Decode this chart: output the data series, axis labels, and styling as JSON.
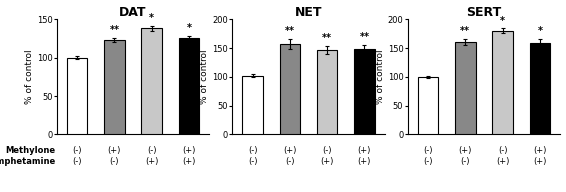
{
  "panels": [
    {
      "title": "DAT",
      "ylim": [
        0,
        150
      ],
      "yticks": [
        0,
        50,
        100,
        150
      ],
      "ylabel": "% of control",
      "bars": [
        {
          "value": 100,
          "error": 2,
          "color": "#ffffff",
          "edgecolor": "#000000",
          "sig": ""
        },
        {
          "value": 123,
          "error": 3,
          "color": "#888888",
          "edgecolor": "#000000",
          "sig": "**"
        },
        {
          "value": 138,
          "error": 3,
          "color": "#c8c8c8",
          "edgecolor": "#000000",
          "sig": "*"
        },
        {
          "value": 125,
          "error": 3,
          "color": "#000000",
          "edgecolor": "#000000",
          "sig": "*"
        }
      ],
      "xtick_top": [
        "(-)",
        "(+)",
        "(-)",
        "(+)"
      ],
      "xtick_bot": [
        "(-)",
        "(-)",
        "(+)",
        "(+)"
      ]
    },
    {
      "title": "NET",
      "ylim": [
        0,
        200
      ],
      "yticks": [
        0,
        50,
        100,
        150,
        200
      ],
      "ylabel": "% of control",
      "bars": [
        {
          "value": 102,
          "error": 3,
          "color": "#ffffff",
          "edgecolor": "#000000",
          "sig": ""
        },
        {
          "value": 157,
          "error": 8,
          "color": "#888888",
          "edgecolor": "#000000",
          "sig": "**"
        },
        {
          "value": 147,
          "error": 7,
          "color": "#c8c8c8",
          "edgecolor": "#000000",
          "sig": "**"
        },
        {
          "value": 148,
          "error": 8,
          "color": "#000000",
          "edgecolor": "#000000",
          "sig": "**"
        }
      ],
      "xtick_top": [
        "(-)",
        "(+)",
        "(-)",
        "(+)"
      ],
      "xtick_bot": [
        "(-)",
        "(-)",
        "(+)",
        "(+)"
      ]
    },
    {
      "title": "SERT",
      "ylim": [
        0,
        200
      ],
      "yticks": [
        0,
        50,
        100,
        150,
        200
      ],
      "ylabel": "% of control",
      "bars": [
        {
          "value": 100,
          "error": 2,
          "color": "#ffffff",
          "edgecolor": "#000000",
          "sig": ""
        },
        {
          "value": 160,
          "error": 5,
          "color": "#888888",
          "edgecolor": "#000000",
          "sig": "**"
        },
        {
          "value": 180,
          "error": 4,
          "color": "#c8c8c8",
          "edgecolor": "#000000",
          "sig": "*"
        },
        {
          "value": 158,
          "error": 7,
          "color": "#000000",
          "edgecolor": "#000000",
          "sig": "*"
        }
      ],
      "xtick_top": [
        "(-)",
        "(+)",
        "(-)",
        "(+)"
      ],
      "xtick_bot": [
        "(-)",
        "(-)",
        "(+)",
        "(+)"
      ]
    }
  ],
  "row_label_top": "Methylone",
  "row_label_bot": "Methamphetamine",
  "background_color": "#ffffff",
  "bar_width": 0.55,
  "sig_fontsize": 7,
  "title_fontsize": 9,
  "ylabel_fontsize": 6.5,
  "tick_fontsize": 6.0,
  "xlabel_fontsize": 6.0
}
